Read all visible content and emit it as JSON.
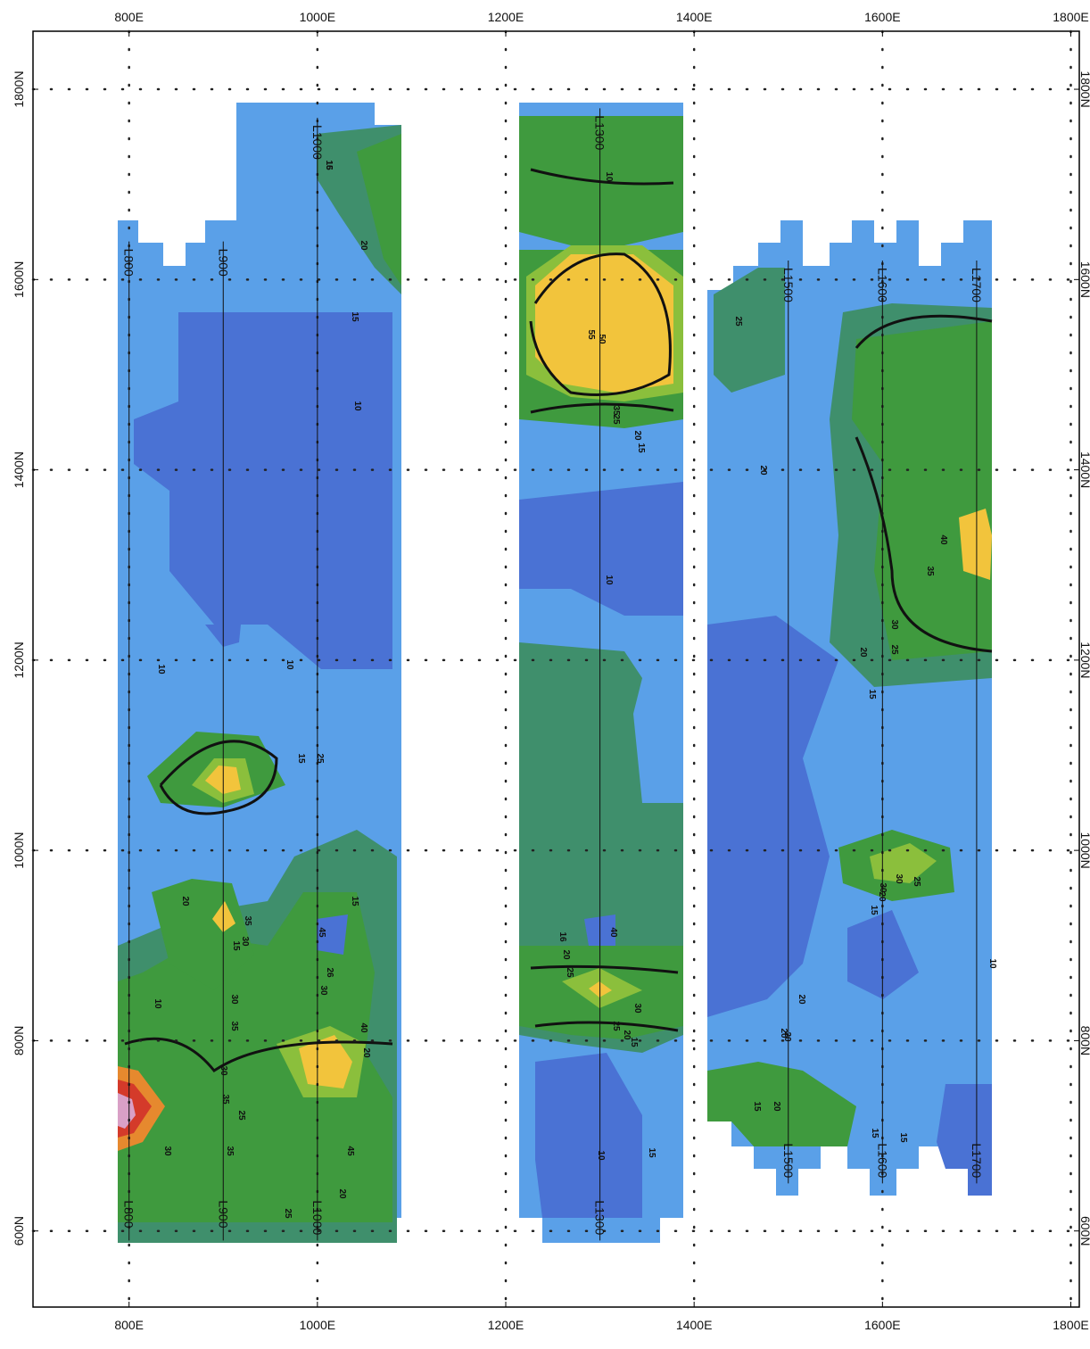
{
  "map": {
    "xlim": [
      698,
      1809
    ],
    "ylim": [
      520,
      1861
    ],
    "xticks": [
      {
        "value": 800,
        "label": "800E"
      },
      {
        "value": 1000,
        "label": "1000E"
      },
      {
        "value": 1200,
        "label": "1200E"
      },
      {
        "value": 1400,
        "label": "1400E"
      },
      {
        "value": 1600,
        "label": "1600E"
      },
      {
        "value": 1800,
        "label": "1800E"
      }
    ],
    "yticks": [
      {
        "value": 600,
        "label": "600N"
      },
      {
        "value": 800,
        "label": "800N"
      },
      {
        "value": 1000,
        "label": "1000N"
      },
      {
        "value": 1200,
        "label": "1200N"
      },
      {
        "value": 1400,
        "label": "1400N"
      },
      {
        "value": 1600,
        "label": "1600N"
      },
      {
        "value": 1800,
        "label": "1800N"
      }
    ],
    "grid": true,
    "survey_lines": [
      {
        "label": "L800",
        "x": 800,
        "start": 590,
        "end": 1640
      },
      {
        "label": "L900",
        "x": 900,
        "start": 590,
        "end": 1640
      },
      {
        "label": "L1000",
        "x": 1000,
        "start": 590,
        "end": 1770
      },
      {
        "label": "L1300",
        "x": 1300,
        "start": 590,
        "end": 1780
      },
      {
        "label": "L1500",
        "x": 1500,
        "start": 650,
        "end": 1620
      },
      {
        "label": "L1600",
        "x": 1600,
        "start": 650,
        "end": 1620
      },
      {
        "label": "L1700",
        "x": 1700,
        "start": 650,
        "end": 1620
      }
    ],
    "contour_labels": [
      "15",
      "20",
      "15",
      "10",
      "10",
      "10",
      "10",
      "20",
      "25",
      "15",
      "15",
      "30",
      "35",
      "30",
      "25",
      "26",
      "30",
      "40",
      "45",
      "35",
      "30",
      "35",
      "20",
      "15",
      "20",
      "25",
      "30",
      "35",
      "40",
      "45",
      "50",
      "55",
      "35",
      "25",
      "20",
      "15",
      "10",
      "10",
      "16",
      "20",
      "25",
      "30",
      "25",
      "20",
      "15",
      "10",
      "15",
      "20",
      "20",
      "30",
      "20",
      "15",
      "40",
      "35",
      "30",
      "25",
      "20",
      "15",
      "30",
      "25",
      "20",
      "15",
      "20",
      "15",
      "25",
      "20",
      "15",
      "10",
      "16"
    ]
  }
}
